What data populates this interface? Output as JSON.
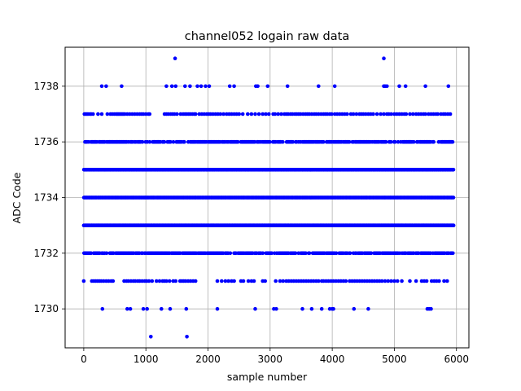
{
  "chart_data": {
    "type": "scatter",
    "title": "channel052 logain raw data",
    "xlabel": "sample number",
    "ylabel": "ADC Code",
    "xlim": [
      -300,
      6200
    ],
    "ylim": [
      1728.6,
      1739.4
    ],
    "xticks": [
      0,
      1000,
      2000,
      3000,
      4000,
      5000,
      6000
    ],
    "yticks": [
      1730,
      1732,
      1734,
      1736,
      1738
    ],
    "grid": true,
    "legend": "none",
    "marker_color": "#0000ff",
    "x_max_sample": 5950,
    "series": [
      {
        "values_by_level": [
          {
            "y": 1734,
            "density": "continuous"
          },
          {
            "y": 1733,
            "density": "continuous"
          },
          {
            "y": 1735,
            "density": "continuous"
          },
          {
            "y": 1736,
            "density": "dense"
          },
          {
            "y": 1732,
            "density": "dense"
          },
          {
            "y": 1737,
            "density": "sparse",
            "x": [
              10,
              30,
              50,
              70,
              100,
              120,
              150,
              230,
              290,
              380,
              430,
              460,
              490,
              520,
              540,
              560,
              580,
              600,
              620,
              640,
              660,
              700,
              740,
              780,
              820,
              860,
              900,
              930,
              960,
              1000,
              1040,
              1060,
              1300,
              1330,
              1360,
              1400,
              1430,
              1460,
              1500,
              1560,
              1600,
              1630,
              1660,
              1690,
              1720,
              1750,
              1780,
              1800,
              1860,
              1900,
              1940,
              1980,
              2010,
              2040,
              2080,
              2120,
              2160,
              2200,
              2250,
              2300,
              2340,
              2380,
              2420,
              2460,
              2500,
              2560,
              2640,
              2700,
              2760,
              2820,
              2880,
              2930,
              2980,
              3050,
              3080,
              3130,
              3180,
              3230,
              3260,
              3290,
              3330,
              3360,
              3400,
              3430,
              3460,
              3490,
              3530,
              3570,
              3600,
              3630,
              3670,
              3710,
              3740,
              3780,
              3820,
              3860,
              3890,
              3920,
              3960,
              3990,
              4040,
              4080,
              4120,
              4160,
              4200,
              4240,
              4300,
              4340,
              4390,
              4440,
              4470,
              4500,
              4540,
              4580,
              4620,
              4660,
              4720,
              4780,
              4830,
              4880,
              4910,
              4950,
              5000,
              5040,
              5080,
              5120,
              5160,
              5190,
              5250,
              5300,
              5350,
              5390,
              5430,
              5470,
              5500,
              5550,
              5590,
              5630,
              5670,
              5700,
              5750,
              5790,
              5820,
              5860,
              5900
            ]
          },
          {
            "y": 1731,
            "density": "sparse",
            "x": [
              0,
              130,
              160,
              190,
              220,
              250,
              280,
              320,
              360,
              400,
              440,
              470,
              650,
              690,
              720,
              760,
              800,
              830,
              870,
              900,
              940,
              980,
              1010,
              1050,
              1100,
              1170,
              1220,
              1270,
              1300,
              1330,
              1380,
              1440,
              1480,
              1550,
              1580,
              1610,
              1640,
              1680,
              1720,
              1760,
              1800,
              2150,
              2220,
              2280,
              2330,
              2380,
              2420,
              2530,
              2570,
              2650,
              2700,
              2740,
              2880,
              2920,
              3090,
              3160,
              3210,
              3260,
              3300,
              3340,
              3380,
              3420,
              3460,
              3500,
              3540,
              3580,
              3620,
              3660,
              3700,
              3740,
              3780,
              3830,
              3860,
              3900,
              3940,
              3980,
              4020,
              4060,
              4100,
              4140,
              4180,
              4220,
              4280,
              4320,
              4360,
              4400,
              4440,
              4480,
              4520,
              4560,
              4600,
              4640,
              4680,
              4720,
              4760,
              4800,
              4850,
              4900,
              4950,
              5000,
              5050,
              5120,
              5250,
              5350,
              5440,
              5480,
              5520,
              5600,
              5640,
              5680,
              5720,
              5800,
              5850
            ]
          },
          {
            "y": 1738,
            "density": "sparse",
            "x": [
              290,
              360,
              610,
              1330,
              1420,
              1480,
              1630,
              1710,
              1830,
              1890,
              1960,
              2020,
              2350,
              2420,
              2770,
              2800,
              2960,
              3280,
              3780,
              4040,
              4830,
              4850,
              4880,
              5080,
              5180,
              5500,
              5870
            ]
          },
          {
            "y": 1730,
            "density": "sparse",
            "x": [
              300,
              700,
              750,
              960,
              1020,
              1250,
              1390,
              1650,
              2150,
              2760,
              3060,
              3100,
              3520,
              3670,
              3830,
              3960,
              4000,
              4020,
              4350,
              4580,
              5530,
              5560,
              5590
            ]
          },
          {
            "y": 1729,
            "density": "sparse",
            "x": [
              1080,
              1660
            ]
          },
          {
            "y": 1739,
            "density": "sparse",
            "x": [
              1470,
              4830
            ]
          }
        ]
      }
    ]
  }
}
